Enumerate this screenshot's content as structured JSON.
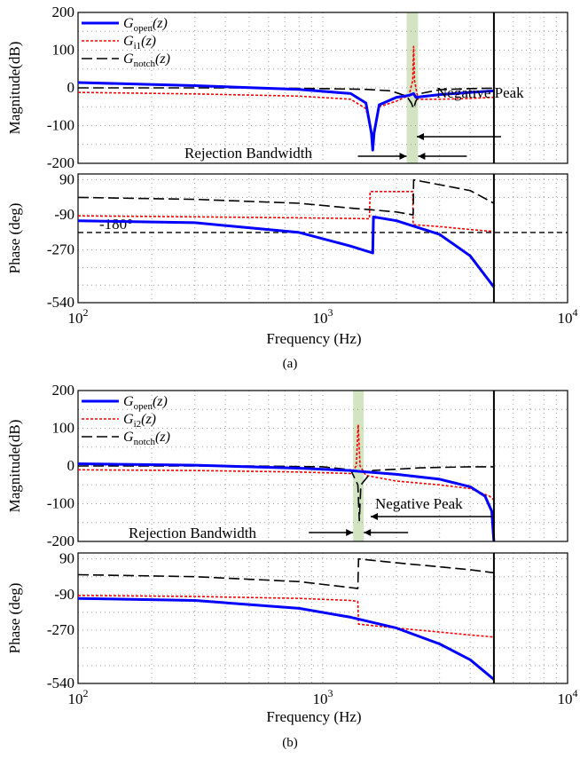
{
  "colors": {
    "open": "#0000ff",
    "inner": "#ff0000",
    "notch": "#000000",
    "band": "#c8ddb4",
    "grid": "#9a9a9a"
  },
  "chart_data": [
    {
      "id": "a",
      "type": "line",
      "caption": "(a)",
      "xlabel": "Frequency (Hz)",
      "xscale": "log",
      "xlim": [
        100,
        10000
      ],
      "xticks": [
        "10^2",
        "10^3",
        "10^4"
      ],
      "grid": true,
      "legend": {
        "placement": "top-left",
        "entries": [
          {
            "sym": "G",
            "sub": "open",
            "arg": "(z)"
          },
          {
            "sym": "G",
            "sub": "i1",
            "arg": "(z)"
          },
          {
            "sym": "G",
            "sub": "notch",
            "arg": "(z)"
          }
        ]
      },
      "magnitude": {
        "ylabel": "Magnitude(dB)",
        "ylim": [
          -200,
          200
        ],
        "yticks": [
          "200",
          "100",
          "0",
          "-100",
          "-200"
        ],
        "highlight_band": [
          2200,
          2450
        ],
        "nyquist_line": 5000,
        "annotations": {
          "negative_peak": "Negative Peak",
          "rejection_bandwidth": "Rejection Bandwidth"
        },
        "series": [
          {
            "key": "open",
            "points": [
              [
                100,
                14
              ],
              [
                300,
                6
              ],
              [
                800,
                -4
              ],
              [
                1300,
                -15
              ],
              [
                1500,
                -40
              ],
              [
                1580,
                -120
              ],
              [
                1600,
                -165
              ],
              [
                1620,
                -120
              ],
              [
                1700,
                -45
              ],
              [
                2000,
                -25
              ],
              [
                2250,
                -20
              ],
              [
                2350,
                -15
              ],
              [
                2400,
                -25
              ],
              [
                3000,
                -18
              ],
              [
                4000,
                -12
              ],
              [
                5000,
                -8
              ]
            ]
          },
          {
            "key": "inner",
            "points": [
              [
                100,
                -12
              ],
              [
                300,
                -16
              ],
              [
                800,
                -22
              ],
              [
                1300,
                -30
              ],
              [
                1500,
                -55
              ],
              [
                1580,
                -120
              ],
              [
                1600,
                -160
              ],
              [
                1620,
                -120
              ],
              [
                1700,
                -50
              ],
              [
                2000,
                -35
              ],
              [
                2250,
                -20
              ],
              [
                2330,
                20
              ],
              [
                2350,
                110
              ],
              [
                2370,
                20
              ],
              [
                2450,
                -30
              ],
              [
                3000,
                -30
              ],
              [
                4000,
                -28
              ],
              [
                5000,
                -25
              ]
            ]
          },
          {
            "key": "notch",
            "points": [
              [
                100,
                0
              ],
              [
                500,
                0
              ],
              [
                1000,
                -2
              ],
              [
                1500,
                -4
              ],
              [
                1900,
                -8
              ],
              [
                2200,
                -22
              ],
              [
                2300,
                -40
              ],
              [
                2350,
                -55
              ],
              [
                2400,
                -35
              ],
              [
                2500,
                -15
              ],
              [
                3000,
                -5
              ],
              [
                4000,
                -2
              ],
              [
                5000,
                -1
              ]
            ]
          }
        ]
      },
      "phase": {
        "ylabel": "Phase (deg)",
        "ylim": [
          -540,
          120
        ],
        "yticks": [
          "90",
          "-90",
          "-270",
          "-540"
        ],
        "ref_line": -180,
        "ref_label": "-180°",
        "nyquist_line": 5000,
        "series": [
          {
            "key": "open",
            "points": [
              [
                100,
                -120
              ],
              [
                300,
                -130
              ],
              [
                800,
                -180
              ],
              [
                1300,
                -250
              ],
              [
                1600,
                -285
              ],
              [
                1610,
                -100
              ],
              [
                2000,
                -120
              ],
              [
                3000,
                -190
              ],
              [
                4000,
                -300
              ],
              [
                5000,
                -460
              ]
            ]
          },
          {
            "key": "inner",
            "points": [
              [
                100,
                -95
              ],
              [
                300,
                -100
              ],
              [
                800,
                -105
              ],
              [
                1300,
                -108
              ],
              [
                1550,
                -110
              ],
              [
                1560,
                30
              ],
              [
                2330,
                30
              ],
              [
                2340,
                -140
              ],
              [
                3000,
                -150
              ],
              [
                4000,
                -165
              ],
              [
                5000,
                -175
              ]
            ]
          },
          {
            "key": "notch",
            "points": [
              [
                100,
                0
              ],
              [
                300,
                -10
              ],
              [
                800,
                -30
              ],
              [
                1300,
                -55
              ],
              [
                2000,
                -75
              ],
              [
                2340,
                -90
              ],
              [
                2350,
                90
              ],
              [
                3000,
                65
              ],
              [
                4000,
                35
              ],
              [
                5000,
                -30
              ]
            ]
          }
        ]
      }
    },
    {
      "id": "b",
      "type": "line",
      "caption": "(b)",
      "xlabel": "Frequency (Hz)",
      "xscale": "log",
      "xlim": [
        100,
        10000
      ],
      "xticks": [
        "10^2",
        "10^3",
        "10^4"
      ],
      "grid": true,
      "legend": {
        "placement": "top-left",
        "entries": [
          {
            "sym": "G",
            "sub": "open",
            "arg": "(z)"
          },
          {
            "sym": "G",
            "sub": "i2",
            "arg": "(z)"
          },
          {
            "sym": "G",
            "sub": "notch",
            "arg": "(z)"
          }
        ]
      },
      "magnitude": {
        "ylabel": "Magnitude(dB)",
        "ylim": [
          -200,
          200
        ],
        "yticks": [
          "200",
          "100",
          "0",
          "-100",
          "-200"
        ],
        "highlight_band": [
          1330,
          1470
        ],
        "nyquist_line": 5000,
        "annotations": {
          "negative_peak": "Negative Peak",
          "rejection_bandwidth": "Rejection Bandwidth"
        },
        "series": [
          {
            "key": "open",
            "points": [
              [
                100,
                6
              ],
              [
                300,
                2
              ],
              [
                800,
                -6
              ],
              [
                1300,
                -12
              ],
              [
                1400,
                -14
              ],
              [
                2000,
                -22
              ],
              [
                3000,
                -35
              ],
              [
                4000,
                -55
              ],
              [
                4600,
                -80
              ],
              [
                4900,
                -120
              ],
              [
                5000,
                -200
              ]
            ]
          },
          {
            "key": "inner",
            "points": [
              [
                100,
                -10
              ],
              [
                300,
                -12
              ],
              [
                800,
                -16
              ],
              [
                1300,
                -20
              ],
              [
                1370,
                0
              ],
              [
                1395,
                110
              ],
              [
                1420,
                0
              ],
              [
                1500,
                -25
              ],
              [
                2000,
                -40
              ],
              [
                3000,
                -50
              ],
              [
                4000,
                -60
              ],
              [
                4800,
                -80
              ],
              [
                5000,
                -90
              ]
            ]
          },
          {
            "key": "notch",
            "points": [
              [
                100,
                0
              ],
              [
                500,
                0
              ],
              [
                1000,
                -2
              ],
              [
                1300,
                -10
              ],
              [
                1390,
                -50
              ],
              [
                1410,
                -145
              ],
              [
                1430,
                -50
              ],
              [
                1600,
                -12
              ],
              [
                2500,
                -5
              ],
              [
                4000,
                -2
              ],
              [
                5000,
                -2
              ]
            ]
          }
        ]
      },
      "phase": {
        "ylabel": "Phase (deg)",
        "ylim": [
          -540,
          120
        ],
        "yticks": [
          "90",
          "-90",
          "-270",
          "-540"
        ],
        "nyquist_line": 5000,
        "series": [
          {
            "key": "open",
            "points": [
              [
                100,
                -110
              ],
              [
                300,
                -120
              ],
              [
                800,
                -160
              ],
              [
                1300,
                -205
              ],
              [
                2000,
                -260
              ],
              [
                3000,
                -340
              ],
              [
                4000,
                -420
              ],
              [
                5000,
                -520
              ]
            ]
          },
          {
            "key": "inner",
            "points": [
              [
                100,
                -95
              ],
              [
                300,
                -100
              ],
              [
                800,
                -110
              ],
              [
                1300,
                -120
              ],
              [
                1390,
                -125
              ],
              [
                1400,
                -240
              ],
              [
                2000,
                -260
              ],
              [
                3000,
                -280
              ],
              [
                4000,
                -295
              ],
              [
                5000,
                -305
              ]
            ]
          },
          {
            "key": "notch",
            "points": [
              [
                100,
                10
              ],
              [
                300,
                0
              ],
              [
                800,
                -25
              ],
              [
                1300,
                -55
              ],
              [
                1390,
                -60
              ],
              [
                1400,
                90
              ],
              [
                2000,
                70
              ],
              [
                3000,
                50
              ],
              [
                4000,
                35
              ],
              [
                5000,
                20
              ]
            ]
          }
        ]
      }
    }
  ]
}
